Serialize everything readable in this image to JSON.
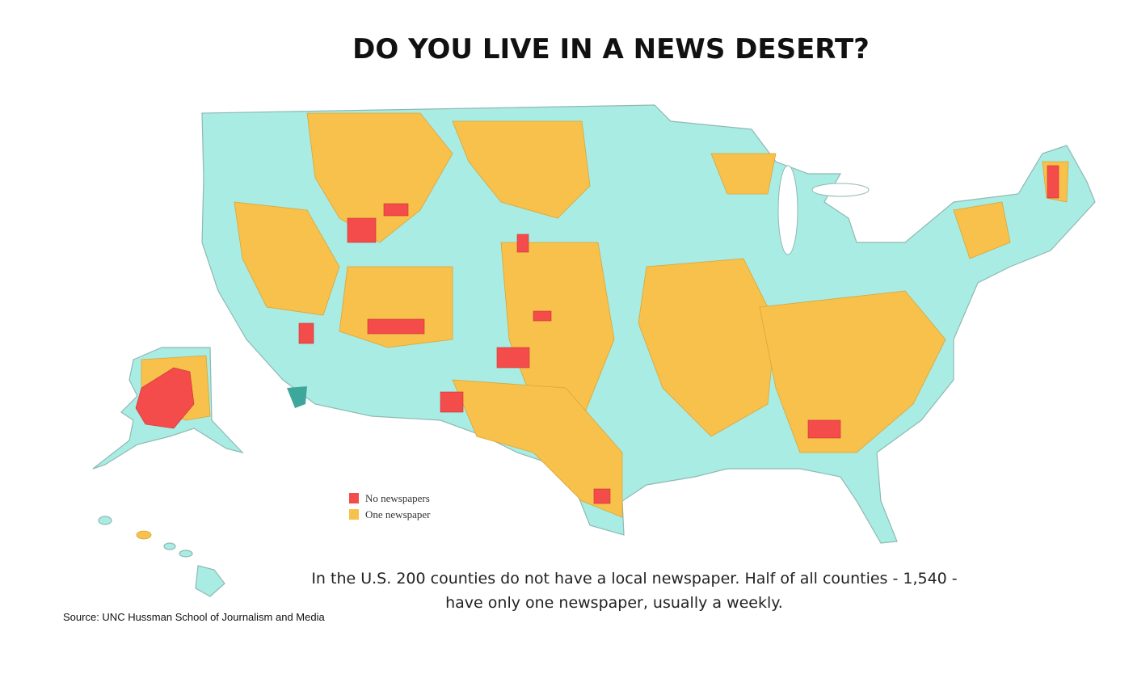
{
  "title": "DO YOU LIVE IN A NEWS DESERT?",
  "legend": [
    {
      "name": "No newspapers",
      "color": "#f44b4b"
    },
    {
      "name": "One newspaper",
      "color": "#f7c14c"
    }
  ],
  "caption": [
    "In the U.S. 200 counties do not have a local newspaper.  Half of all counties - 1,540 -",
    "have only one newspaper, usually a weekly."
  ],
  "source": "Source:  UNC Hussman School of Journalism and Media"
}
